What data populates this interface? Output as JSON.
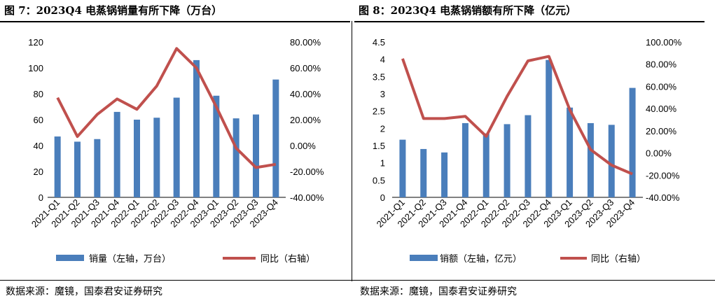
{
  "charts": {
    "left": {
      "title": "图 7：2023Q4 电蒸锅销量有所下降（万台）",
      "source": "数据来源：魔镜，国泰君安证券研究",
      "legend": {
        "bar": "销量（左轴，万台）",
        "line": "同比（右轴）"
      }
    },
    "right": {
      "title": "图 8：2023Q4 电蒸锅销额有所下降（亿元）",
      "source": "数据来源：魔镜，国泰君安证券研究",
      "legend": {
        "bar": "销额（左轴，亿元）",
        "line": "同比（右轴）"
      }
    }
  },
  "chart_data": [
    {
      "type": "bar",
      "title": "图 7：2023Q4 电蒸锅销量有所下降（万台）",
      "categories": [
        "2021-Q1",
        "2021-Q2",
        "2021-Q3",
        "2021-Q4",
        "2022-Q1",
        "2022-Q2",
        "2022-Q3",
        "2022-Q4",
        "2023-Q1",
        "2023-Q2",
        "2023-Q3",
        "2023-Q4"
      ],
      "series": [
        {
          "name": "销量（左轴，万台）",
          "type": "bar",
          "axis": "left",
          "color": "#4a7ebb",
          "values": [
            47,
            43,
            45,
            66,
            60,
            61.5,
            77,
            106,
            78.5,
            61,
            64,
            91
          ]
        },
        {
          "name": "同比（右轴）",
          "type": "line",
          "axis": "right",
          "color": "#c0504d",
          "values": [
            0.37,
            0.07,
            0.24,
            0.36,
            0.28,
            0.46,
            0.75,
            0.6,
            0.3,
            -0.02,
            -0.17,
            -0.145
          ]
        }
      ],
      "y_left": {
        "min": 0,
        "max": 120,
        "ticks": [
          0,
          20,
          40,
          60,
          80,
          100,
          120
        ]
      },
      "y_right": {
        "min": -0.4,
        "max": 0.8,
        "ticks": [
          -0.4,
          -0.2,
          0,
          0.2,
          0.4,
          0.6,
          0.8
        ],
        "labels": [
          "-40.00%",
          "-20.00%",
          "0.00%",
          "20.00%",
          "40.00%",
          "60.00%",
          "80.00%"
        ]
      },
      "grid": false,
      "legend_position": "bottom"
    },
    {
      "type": "bar",
      "title": "图 8：2023Q4 电蒸锅销额有所下降（亿元）",
      "categories": [
        "2021-Q1",
        "2021-Q2",
        "2021-Q3",
        "2021-Q4",
        "2022-Q1",
        "2022-Q2",
        "2022-Q3",
        "2022-Q4",
        "2023-Q1",
        "2023-Q2",
        "2023-Q3",
        "2023-Q4"
      ],
      "series": [
        {
          "name": "销额（左轴，亿元）",
          "type": "bar",
          "axis": "left",
          "color": "#4a7ebb",
          "values": [
            1.67,
            1.4,
            1.3,
            2.15,
            1.85,
            2.12,
            2.38,
            3.98,
            2.6,
            2.15,
            2.1,
            3.17
          ]
        },
        {
          "name": "同比（右轴）",
          "type": "line",
          "axis": "right",
          "color": "#c0504d",
          "values": [
            0.85,
            0.31,
            0.31,
            0.33,
            0.15,
            0.51,
            0.83,
            0.87,
            0.39,
            0.03,
            -0.11,
            -0.19
          ]
        }
      ],
      "y_left": {
        "min": 0,
        "max": 4.5,
        "ticks": [
          0,
          0.5,
          1,
          1.5,
          2,
          2.5,
          3,
          3.5,
          4,
          4.5
        ],
        "labels": [
          "0",
          "0.5",
          "1",
          "1.5",
          "2",
          "2.5",
          "3",
          "3.5",
          "4",
          "4.5"
        ]
      },
      "y_right": {
        "min": -0.4,
        "max": 1.0,
        "ticks": [
          -0.4,
          -0.2,
          0,
          0.2,
          0.4,
          0.6,
          0.8,
          1.0
        ],
        "labels": [
          "-40.00%",
          "-20.00%",
          "0.00%",
          "20.00%",
          "40.00%",
          "60.00%",
          "80.00%",
          "100.00%"
        ]
      },
      "grid": false,
      "legend_position": "bottom"
    }
  ]
}
